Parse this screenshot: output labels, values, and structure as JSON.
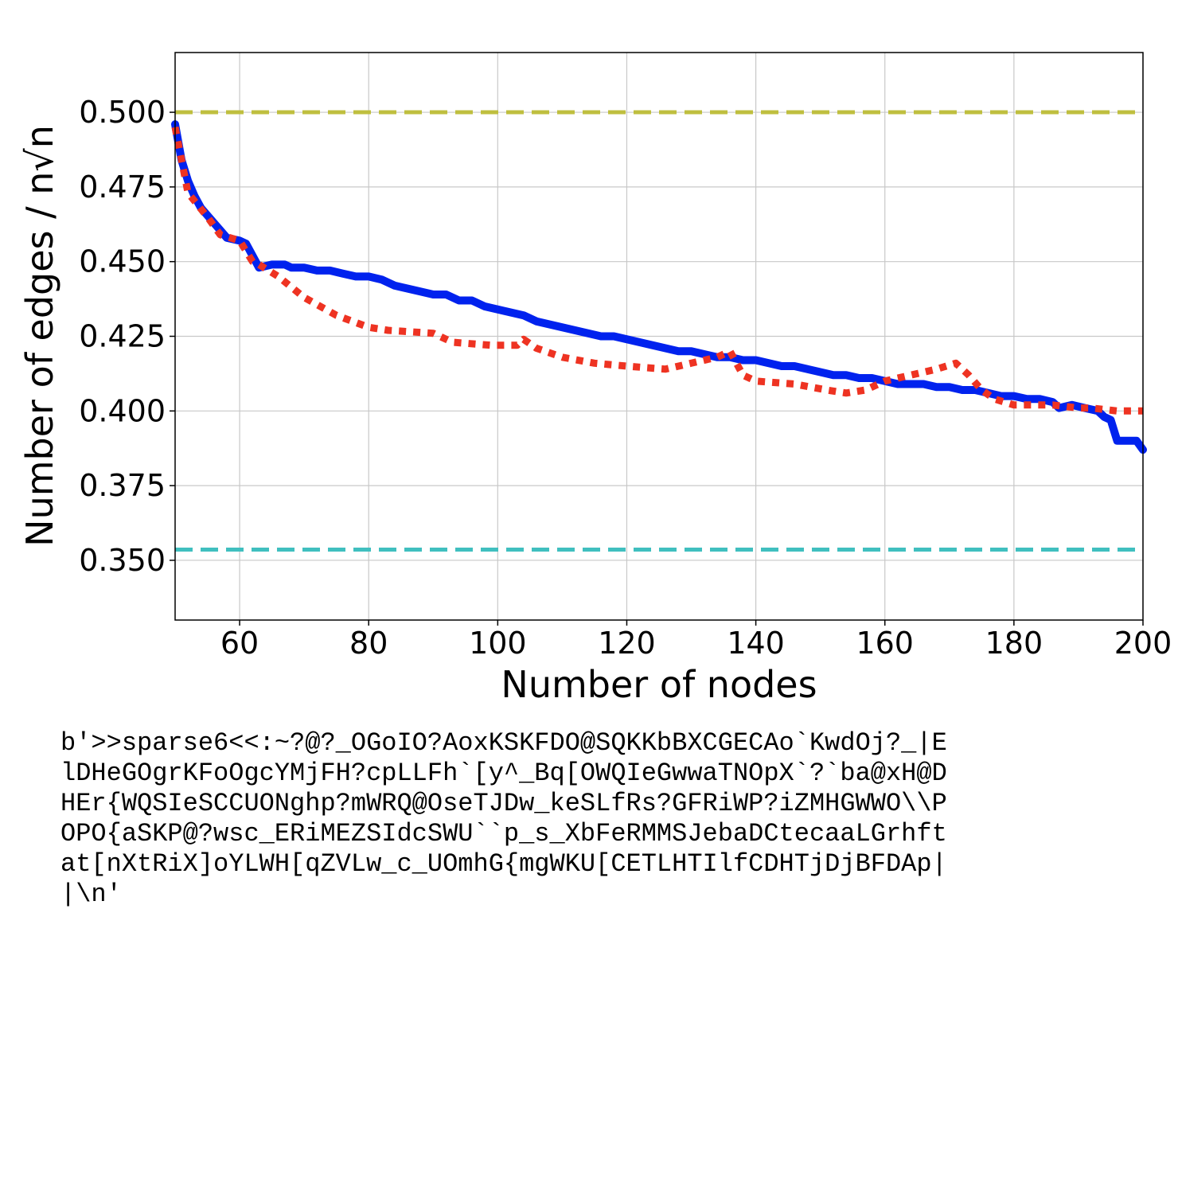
{
  "chart_data": {
    "type": "line",
    "xlabel": "Number of nodes",
    "ylabel": "Number of edges / n√n",
    "xlim": [
      50,
      200
    ],
    "ylim": [
      0.33,
      0.52
    ],
    "xticks": [
      60,
      80,
      100,
      120,
      140,
      160,
      180,
      200
    ],
    "yticks": [
      0.35,
      0.375,
      0.4,
      0.425,
      0.45,
      0.475,
      0.5
    ],
    "grid": true,
    "legend": "none",
    "reference_lines": [
      {
        "y": 0.5,
        "color": "#bfbf3f",
        "style": "dashed"
      },
      {
        "y": 0.3536,
        "color": "#40bfbf",
        "style": "dashed"
      }
    ],
    "series": [
      {
        "color": "#0022ee",
        "style": "solid",
        "points": [
          [
            50,
            0.496
          ],
          [
            51,
            0.484
          ],
          [
            52,
            0.477
          ],
          [
            53,
            0.472
          ],
          [
            54,
            0.468
          ],
          [
            56,
            0.463
          ],
          [
            58,
            0.458
          ],
          [
            60,
            0.457
          ],
          [
            61,
            0.456
          ],
          [
            62,
            0.452
          ],
          [
            63,
            0.448
          ],
          [
            65,
            0.449
          ],
          [
            66,
            0.449
          ],
          [
            67,
            0.449
          ],
          [
            68,
            0.448
          ],
          [
            70,
            0.448
          ],
          [
            72,
            0.447
          ],
          [
            74,
            0.447
          ],
          [
            76,
            0.446
          ],
          [
            78,
            0.445
          ],
          [
            80,
            0.445
          ],
          [
            82,
            0.444
          ],
          [
            84,
            0.442
          ],
          [
            86,
            0.441
          ],
          [
            88,
            0.44
          ],
          [
            90,
            0.439
          ],
          [
            92,
            0.439
          ],
          [
            94,
            0.437
          ],
          [
            96,
            0.437
          ],
          [
            98,
            0.435
          ],
          [
            100,
            0.434
          ],
          [
            102,
            0.433
          ],
          [
            104,
            0.432
          ],
          [
            106,
            0.43
          ],
          [
            108,
            0.429
          ],
          [
            110,
            0.428
          ],
          [
            112,
            0.427
          ],
          [
            114,
            0.426
          ],
          [
            116,
            0.425
          ],
          [
            118,
            0.425
          ],
          [
            120,
            0.424
          ],
          [
            122,
            0.423
          ],
          [
            124,
            0.422
          ],
          [
            126,
            0.421
          ],
          [
            128,
            0.42
          ],
          [
            130,
            0.42
          ],
          [
            132,
            0.419
          ],
          [
            134,
            0.418
          ],
          [
            136,
            0.418
          ],
          [
            138,
            0.417
          ],
          [
            140,
            0.417
          ],
          [
            142,
            0.416
          ],
          [
            144,
            0.415
          ],
          [
            146,
            0.415
          ],
          [
            148,
            0.414
          ],
          [
            150,
            0.413
          ],
          [
            152,
            0.412
          ],
          [
            154,
            0.412
          ],
          [
            156,
            0.411
          ],
          [
            158,
            0.411
          ],
          [
            160,
            0.41
          ],
          [
            162,
            0.409
          ],
          [
            164,
            0.409
          ],
          [
            166,
            0.409
          ],
          [
            168,
            0.408
          ],
          [
            170,
            0.408
          ],
          [
            172,
            0.407
          ],
          [
            174,
            0.407
          ],
          [
            176,
            0.406
          ],
          [
            178,
            0.405
          ],
          [
            180,
            0.405
          ],
          [
            182,
            0.404
          ],
          [
            184,
            0.404
          ],
          [
            186,
            0.403
          ],
          [
            187,
            0.401
          ],
          [
            189,
            0.402
          ],
          [
            191,
            0.401
          ],
          [
            193,
            0.4
          ],
          [
            194,
            0.398
          ],
          [
            195,
            0.397
          ],
          [
            196,
            0.39
          ],
          [
            198,
            0.39
          ],
          [
            199,
            0.39
          ],
          [
            200,
            0.387
          ]
        ]
      },
      {
        "color": "#ee3322",
        "style": "dotted",
        "points": [
          [
            50,
            0.495
          ],
          [
            52,
            0.473
          ],
          [
            55,
            0.465
          ],
          [
            57,
            0.459
          ],
          [
            60,
            0.457
          ],
          [
            62,
            0.45
          ],
          [
            63,
            0.449
          ],
          [
            66,
            0.445
          ],
          [
            70,
            0.438
          ],
          [
            75,
            0.432
          ],
          [
            80,
            0.428
          ],
          [
            83,
            0.427
          ],
          [
            90,
            0.426
          ],
          [
            93,
            0.423
          ],
          [
            99,
            0.422
          ],
          [
            103,
            0.422
          ],
          [
            104,
            0.424
          ],
          [
            106,
            0.421
          ],
          [
            110,
            0.418
          ],
          [
            115,
            0.416
          ],
          [
            120,
            0.415
          ],
          [
            126,
            0.414
          ],
          [
            130,
            0.416
          ],
          [
            134,
            0.418
          ],
          [
            136,
            0.42
          ],
          [
            138,
            0.412
          ],
          [
            140,
            0.41
          ],
          [
            146,
            0.409
          ],
          [
            151,
            0.407
          ],
          [
            154,
            0.406
          ],
          [
            157,
            0.407
          ],
          [
            160,
            0.41
          ],
          [
            164,
            0.412
          ],
          [
            168,
            0.414
          ],
          [
            171,
            0.416
          ],
          [
            173,
            0.412
          ],
          [
            175,
            0.407
          ],
          [
            177,
            0.404
          ],
          [
            180,
            0.402
          ],
          [
            184,
            0.402
          ],
          [
            186,
            0.402
          ],
          [
            190,
            0.401
          ],
          [
            192,
            0.401
          ],
          [
            196,
            0.4
          ],
          [
            200,
            0.4
          ]
        ]
      }
    ]
  },
  "caption_lines": [
    "b'>>sparse6<<:~?@?_OGoIO?AoxKSKFDO@SQKKbBXCGECAo`KwdOj?_|E",
    "lDHeGOgrKFoOgcYMjFH?cpLLFh`[y^_Bq[OWQIeGwwaTNOpX`?`ba@xH@D",
    "HEr{WQSIeSCCUONghp?mWRQ@OseTJDw_keSLfRs?GFRiWP?iZMHGWWO\\\\P",
    "OPO{aSKP@?wsc_ERiMEZSIdcSWU``p_s_XbFeRMMSJebaDCtecaaLGrhft",
    "at[nXtRiX]oYLWH[qZVLw_c_UOmhG{mgWKU[CETLHTIlfCDHTjDjBFDAp|",
    "|\\n'"
  ]
}
